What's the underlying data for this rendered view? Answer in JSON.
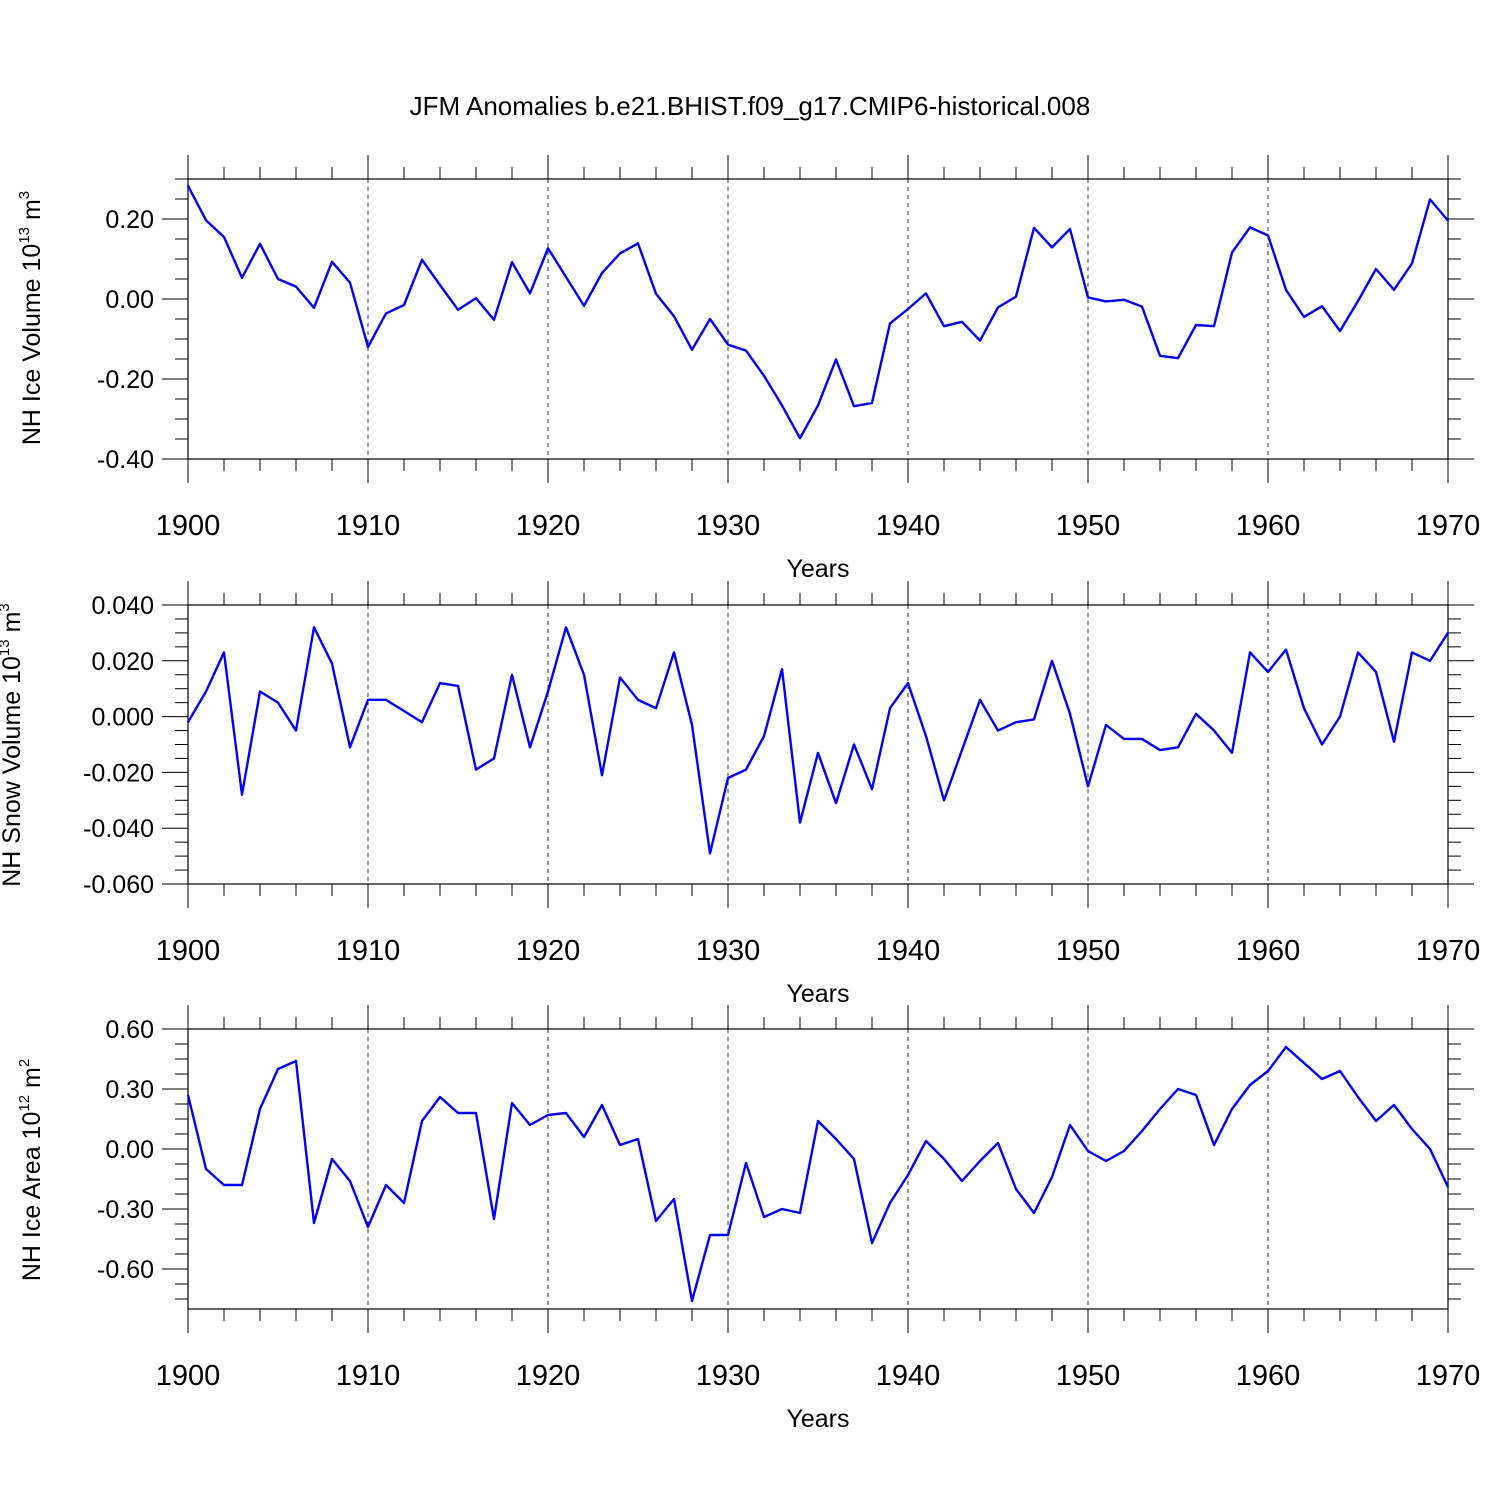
{
  "figure_title": "JFM Anomalies b.e21.BHIST.f09_g17.CMIP6-historical.008",
  "colors": {
    "series": "#0000ff",
    "axis": "#000000",
    "grid": "#000000",
    "background": "#ffffff"
  },
  "chart_data": [
    {
      "type": "line",
      "ylabel_text": "NH Ice Volume 10",
      "ylabel_exp": "13",
      "ylabel_unit": " m",
      "ylabel_unit_exp": "3",
      "xlabel": "Years",
      "xlim": [
        1900,
        1970
      ],
      "ylim": [
        -0.4,
        0.3
      ],
      "xticks": [
        1900,
        1910,
        1920,
        1930,
        1940,
        1950,
        1960,
        1970
      ],
      "xtick_labels": [
        "1900",
        "1910",
        "1920",
        "1930",
        "1940",
        "1950",
        "1960",
        "1970"
      ],
      "yticks": [
        -0.4,
        -0.2,
        0.0,
        0.2
      ],
      "ytick_labels": [
        "-0.40",
        "-0.20",
        "0.00",
        "0.20"
      ],
      "grid": "x-dashed",
      "series": [
        {
          "name": "NH Ice Volume",
          "x": [
            1900,
            1901,
            1902,
            1903,
            1904,
            1905,
            1906,
            1907,
            1908,
            1909,
            1910,
            1911,
            1912,
            1913,
            1914,
            1915,
            1916,
            1917,
            1918,
            1919,
            1920,
            1921,
            1922,
            1923,
            1924,
            1925,
            1926,
            1927,
            1928,
            1929,
            1930,
            1931,
            1932,
            1933,
            1934,
            1935,
            1936,
            1937,
            1938,
            1939,
            1940,
            1941,
            1942,
            1943,
            1944,
            1945,
            1946,
            1947,
            1948,
            1949,
            1950,
            1951,
            1952,
            1953,
            1954,
            1955,
            1956,
            1957,
            1958,
            1959,
            1960,
            1961,
            1962,
            1963,
            1964,
            1965,
            1966,
            1967,
            1968,
            1969,
            1970
          ],
          "values": [
            0.283,
            0.197,
            0.155,
            0.053,
            0.138,
            0.05,
            0.031,
            -0.022,
            0.093,
            0.041,
            -0.12,
            -0.036,
            -0.015,
            0.098,
            0.035,
            -0.027,
            0.002,
            -0.052,
            0.092,
            0.014,
            0.127,
            0.055,
            -0.017,
            0.065,
            0.114,
            0.139,
            0.013,
            -0.043,
            -0.127,
            -0.05,
            -0.114,
            -0.129,
            -0.192,
            -0.266,
            -0.348,
            -0.266,
            -0.151,
            -0.268,
            -0.26,
            -0.061,
            -0.025,
            0.014,
            -0.068,
            -0.057,
            -0.104,
            -0.021,
            0.006,
            0.178,
            0.129,
            0.175,
            0.004,
            -0.006,
            -0.002,
            -0.019,
            -0.142,
            -0.148,
            -0.065,
            -0.068,
            0.116,
            0.179,
            0.159,
            0.023,
            -0.045,
            -0.018,
            -0.08,
            -0.005,
            0.075,
            0.023,
            0.089,
            0.249,
            0.196
          ]
        }
      ]
    },
    {
      "type": "line",
      "ylabel_text": "NH Snow Volume 10",
      "ylabel_exp": "13",
      "ylabel_unit": " m",
      "ylabel_unit_exp": "3",
      "xlabel": "Years",
      "xlim": [
        1900,
        1970
      ],
      "ylim": [
        -0.06,
        0.04
      ],
      "xticks": [
        1900,
        1910,
        1920,
        1930,
        1940,
        1950,
        1960,
        1970
      ],
      "xtick_labels": [
        "1900",
        "1910",
        "1920",
        "1930",
        "1940",
        "1950",
        "1960",
        "1970"
      ],
      "yticks": [
        -0.06,
        -0.04,
        -0.02,
        0.0,
        0.02,
        0.04
      ],
      "ytick_labels": [
        "-0.060",
        "-0.040",
        "-0.020",
        "0.000",
        "0.020",
        "0.040"
      ],
      "grid": "x-dashed",
      "series": [
        {
          "name": "NH Snow Volume",
          "x": [
            1900,
            1901,
            1902,
            1903,
            1904,
            1905,
            1906,
            1907,
            1908,
            1909,
            1910,
            1911,
            1912,
            1913,
            1914,
            1915,
            1916,
            1917,
            1918,
            1919,
            1920,
            1921,
            1922,
            1923,
            1924,
            1925,
            1926,
            1927,
            1928,
            1929,
            1930,
            1931,
            1932,
            1933,
            1934,
            1935,
            1936,
            1937,
            1938,
            1939,
            1940,
            1941,
            1942,
            1943,
            1944,
            1945,
            1946,
            1947,
            1948,
            1949,
            1950,
            1951,
            1952,
            1953,
            1954,
            1955,
            1956,
            1957,
            1958,
            1959,
            1960,
            1961,
            1962,
            1963,
            1964,
            1965,
            1966,
            1967,
            1968,
            1969,
            1970
          ],
          "values": [
            -0.002,
            0.009,
            0.023,
            -0.028,
            0.009,
            0.005,
            -0.005,
            0.032,
            0.019,
            -0.011,
            0.006,
            0.006,
            0.002,
            -0.002,
            0.012,
            0.011,
            -0.019,
            -0.015,
            0.015,
            -0.011,
            0.009,
            0.032,
            0.015,
            -0.021,
            0.014,
            0.006,
            0.003,
            0.023,
            -0.003,
            -0.049,
            -0.022,
            -0.019,
            -0.007,
            0.017,
            -0.038,
            -0.013,
            -0.031,
            -0.01,
            -0.026,
            0.003,
            0.012,
            -0.007,
            -0.03,
            -0.012,
            0.006,
            -0.005,
            -0.002,
            -0.001,
            0.02,
            0.001,
            -0.025,
            -0.003,
            -0.008,
            -0.008,
            -0.012,
            -0.011,
            0.001,
            -0.005,
            -0.013,
            0.023,
            0.016,
            0.024,
            0.003,
            -0.01,
            0.0,
            0.023,
            0.016,
            -0.009,
            0.023,
            0.02,
            0.03
          ]
        }
      ]
    },
    {
      "type": "line",
      "ylabel_text": "NH Ice Area 10",
      "ylabel_exp": "12",
      "ylabel_unit": " m",
      "ylabel_unit_exp": "2",
      "xlabel": "Years",
      "xlim": [
        1900,
        1970
      ],
      "ylim": [
        -0.8,
        0.6
      ],
      "xticks": [
        1900,
        1910,
        1920,
        1930,
        1940,
        1950,
        1960,
        1970
      ],
      "xtick_labels": [
        "1900",
        "1910",
        "1920",
        "1930",
        "1940",
        "1950",
        "1960",
        "1970"
      ],
      "yticks": [
        -0.6,
        -0.3,
        0.0,
        0.3,
        0.6
      ],
      "ytick_labels": [
        "-0.60",
        "-0.30",
        "0.00",
        "0.30",
        "0.60"
      ],
      "grid": "x-dashed",
      "series": [
        {
          "name": "NH Ice Area",
          "x": [
            1900,
            1901,
            1902,
            1903,
            1904,
            1905,
            1906,
            1907,
            1908,
            1909,
            1910,
            1911,
            1912,
            1913,
            1914,
            1915,
            1916,
            1917,
            1918,
            1919,
            1920,
            1921,
            1922,
            1923,
            1924,
            1925,
            1926,
            1927,
            1928,
            1929,
            1930,
            1931,
            1932,
            1933,
            1934,
            1935,
            1936,
            1937,
            1938,
            1939,
            1940,
            1941,
            1942,
            1943,
            1944,
            1945,
            1946,
            1947,
            1948,
            1949,
            1950,
            1951,
            1952,
            1953,
            1954,
            1955,
            1956,
            1957,
            1958,
            1959,
            1960,
            1961,
            1962,
            1963,
            1964,
            1965,
            1966,
            1967,
            1968,
            1969,
            1970
          ],
          "values": [
            0.27,
            -0.1,
            -0.18,
            -0.18,
            0.2,
            0.4,
            0.44,
            -0.37,
            -0.05,
            -0.16,
            -0.39,
            -0.18,
            -0.27,
            0.14,
            0.26,
            0.18,
            0.18,
            -0.35,
            0.23,
            0.12,
            0.17,
            0.18,
            0.06,
            0.22,
            0.02,
            0.05,
            -0.36,
            -0.25,
            -0.76,
            -0.43,
            -0.43,
            -0.07,
            -0.34,
            -0.3,
            -0.32,
            0.14,
            0.05,
            -0.05,
            -0.47,
            -0.27,
            -0.13,
            0.04,
            -0.05,
            -0.16,
            -0.06,
            0.03,
            -0.2,
            -0.32,
            -0.14,
            0.12,
            -0.01,
            -0.06,
            -0.01,
            0.09,
            0.2,
            0.3,
            0.27,
            0.02,
            0.2,
            0.32,
            0.39,
            0.51,
            0.43,
            0.35,
            0.39,
            0.26,
            0.14,
            0.22,
            0.1,
            0.0,
            -0.19
          ]
        }
      ]
    }
  ]
}
